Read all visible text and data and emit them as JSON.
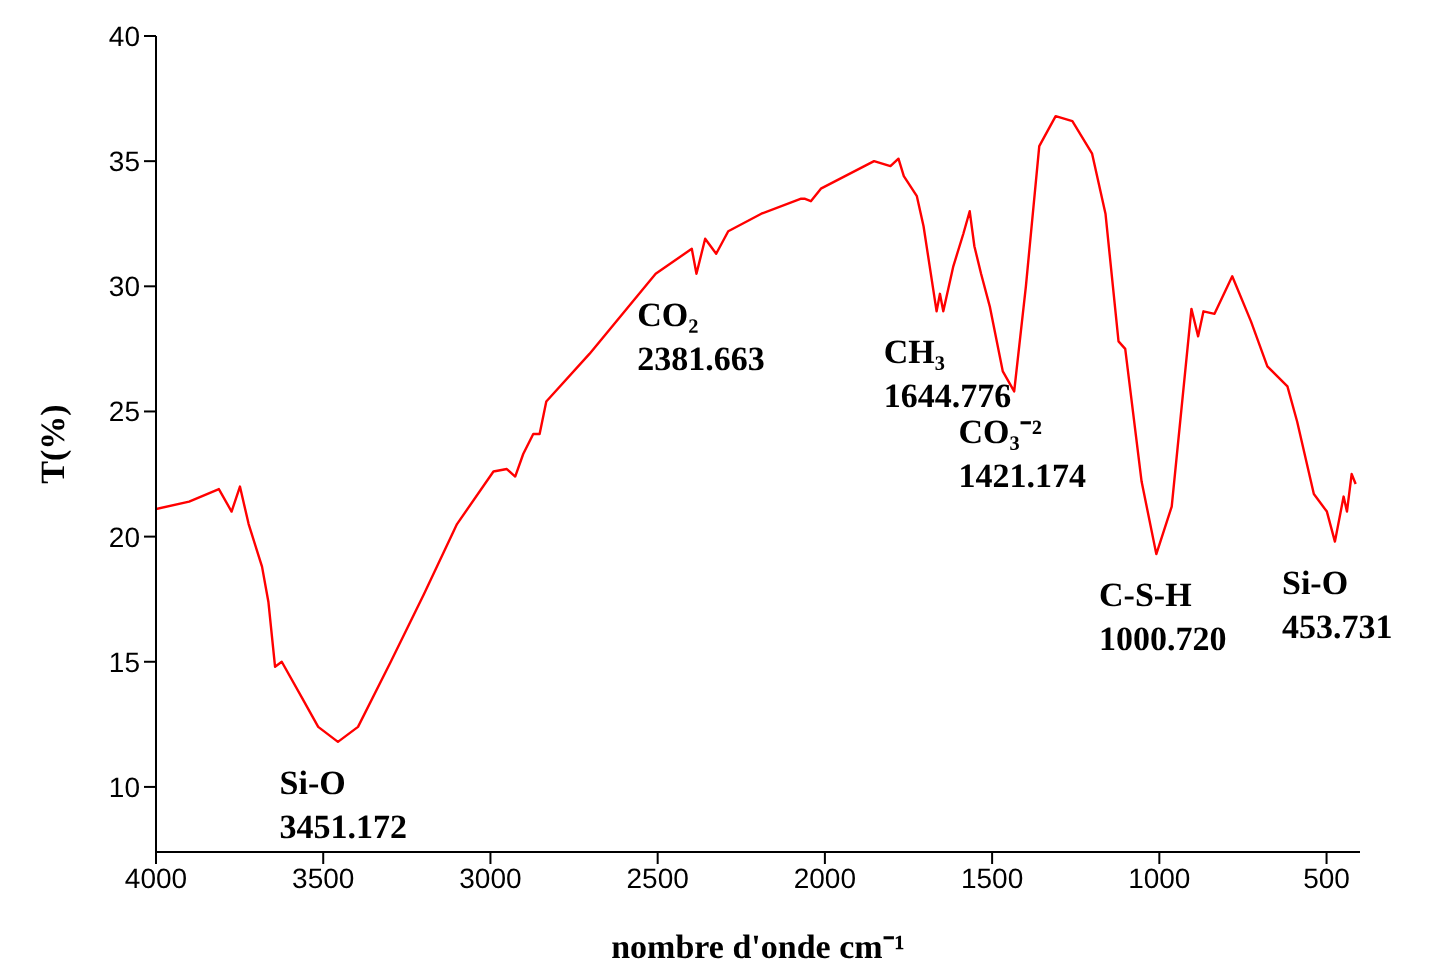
{
  "chart_data": {
    "type": "line",
    "xlabel": "nombre d'onde cm⁻¹",
    "ylabel": "T(%)",
    "xlim": [
      4000,
      400
    ],
    "xticks": [
      4000,
      3500,
      3000,
      2500,
      2000,
      1500,
      1000,
      500
    ],
    "ylim": [
      7.4,
      40
    ],
    "yticks": [
      10,
      15,
      20,
      25,
      30,
      35,
      40
    ],
    "series": [
      {
        "color": "#ff0000",
        "x": [
          4000,
          3901,
          3812,
          3774,
          3749,
          3723,
          3683,
          3664,
          3644,
          3624,
          3565,
          3515,
          3456,
          3396,
          3298,
          3199,
          3100,
          2991,
          2951,
          2926,
          2902,
          2872,
          2853,
          2833,
          2704,
          2506,
          2398,
          2384,
          2358,
          2325,
          2289,
          2190,
          2071,
          2061,
          2042,
          2012,
          1853,
          1804,
          1780,
          1764,
          1725,
          1705,
          1666,
          1656,
          1646,
          1616,
          1586,
          1567,
          1553,
          1533,
          1507,
          1468,
          1434,
          1399,
          1359,
          1310,
          1260,
          1201,
          1161,
          1122,
          1102,
          1053,
          1009,
          963,
          904,
          884,
          868,
          835,
          782,
          726,
          677,
          617,
          588,
          538,
          499,
          475,
          449,
          439,
          425,
          413
        ],
        "values": [
          21.1,
          21.4,
          21.9,
          21.0,
          22.0,
          20.5,
          18.8,
          17.4,
          14.8,
          15.0,
          13.6,
          12.4,
          11.8,
          12.4,
          15.0,
          17.7,
          20.5,
          22.6,
          22.7,
          22.4,
          23.3,
          24.1,
          24.1,
          25.4,
          27.3,
          30.5,
          31.5,
          30.5,
          31.9,
          31.3,
          32.2,
          32.9,
          33.5,
          33.5,
          33.4,
          33.9,
          35.0,
          34.8,
          35.1,
          34.4,
          33.6,
          32.4,
          29.0,
          29.7,
          29.0,
          30.8,
          32.1,
          33.0,
          31.6,
          30.5,
          29.2,
          26.6,
          25.8,
          30.0,
          35.6,
          36.8,
          36.6,
          35.3,
          32.9,
          27.8,
          27.5,
          22.2,
          19.3,
          21.2,
          29.1,
          28.0,
          29.0,
          28.9,
          30.4,
          28.6,
          26.8,
          26.0,
          24.6,
          21.7,
          21.0,
          19.8,
          21.6,
          21.0,
          22.5,
          22.1
        ]
      }
    ],
    "annotations": [
      {
        "text": "Si-O\n3451.172",
        "x": 3451.172,
        "y": 11.8
      },
      {
        "text": "CO₂\n2381.663",
        "x": 2381.663,
        "y": 30.5
      },
      {
        "text": "CH₃\n1644.776",
        "x": 1644.776,
        "y": 29.0
      },
      {
        "text": "CO₃⁻²\n1421.174",
        "x": 1421.174,
        "y": 25.8
      },
      {
        "text": "C-S-H\n1000.720",
        "x": 1000.72,
        "y": 19.3
      },
      {
        "text": "Si-O\n453.731",
        "x": 453.731,
        "y": 19.8
      }
    ]
  }
}
